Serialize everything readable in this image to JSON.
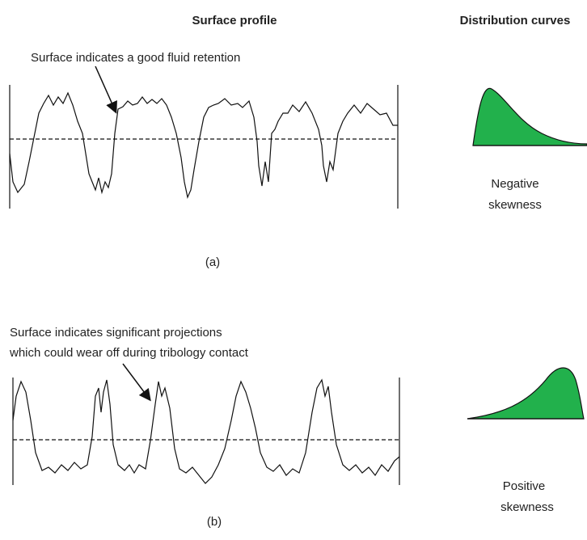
{
  "header": {
    "profile_title": "Surface profile",
    "distribution_title": "Distribution curves"
  },
  "panels": [
    {
      "annotation": [
        "Surface indicates a good fluid retention"
      ],
      "label": "(a)",
      "skewness": [
        "Negative",
        "skewness"
      ]
    },
    {
      "annotation": [
        "Surface indicates significant projections",
        "which could wear off during tribology contact"
      ],
      "label": "(b)",
      "skewness": [
        "Positive",
        "skewness"
      ]
    }
  ]
}
